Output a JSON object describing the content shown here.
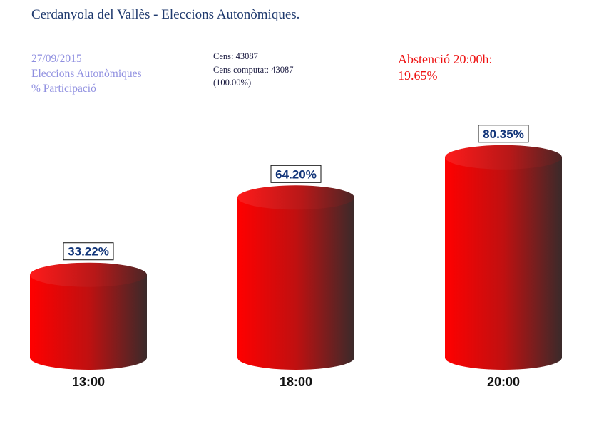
{
  "header": {
    "title": "Cerdanyola del Vallès - Eleccions Autonòmiques."
  },
  "info": {
    "date": "27/09/2015",
    "election": "Eleccions Autonòmiques",
    "metric": "% Participació",
    "cens": "Cens: 43087",
    "cens_computat": "Cens computat: 43087",
    "cens_pct": " (100.00%)"
  },
  "abstention": {
    "line1": "Abstenció 20:00h:",
    "line2": "19.65%"
  },
  "colors": {
    "bar_front": "#ff0000",
    "bar_back": "#3a2a2a",
    "value_text": "#12357a",
    "abstention_text": "#ee1111"
  },
  "chart_data": {
    "type": "bar",
    "style": "3d-cylinder",
    "categories": [
      "13:00",
      "18:00",
      "20:00"
    ],
    "values": [
      33.22,
      64.2,
      80.35
    ],
    "value_labels": [
      "33.22%",
      "64.20%",
      "80.35%"
    ],
    "ylim": [
      0,
      100
    ],
    "grid": false,
    "legend": "none"
  }
}
